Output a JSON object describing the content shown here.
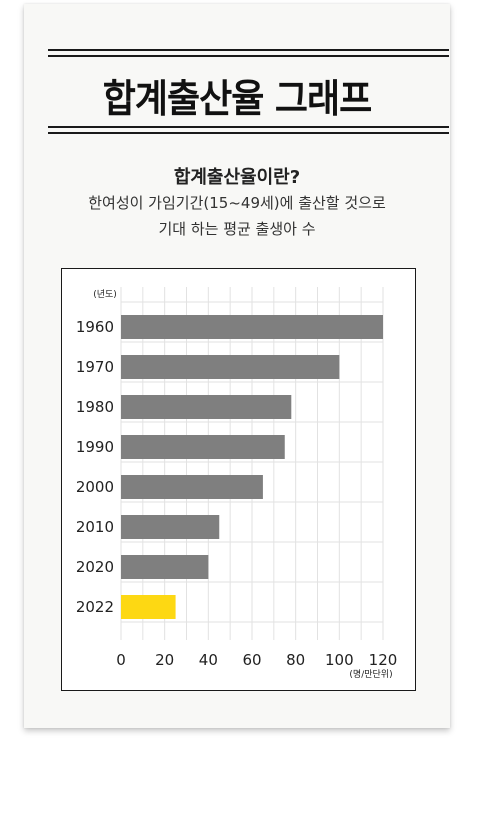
{
  "header": {
    "title": "합계출산율 그래프",
    "subtitle": "합계출산율이란?",
    "description_line1": "한여성이 가임기간(15~49세)에 출산할 것으로",
    "description_line2": "기대 하는 평균 출생아 수"
  },
  "chart_data": {
    "type": "bar",
    "orientation": "horizontal",
    "categories": [
      "1960",
      "1970",
      "1980",
      "1990",
      "2000",
      "2010",
      "2020",
      "2022"
    ],
    "values": [
      120,
      100,
      78,
      75,
      65,
      45,
      40,
      25
    ],
    "xlim": [
      0,
      120
    ],
    "xticks": [
      "0",
      "20",
      "40",
      "60",
      "80",
      "100",
      "120"
    ],
    "y_unit_label": "(년도)",
    "x_unit_label": "(명/만단위)",
    "grid": true,
    "colors": {
      "default": "#7f7f7f",
      "highlight": "#fdd813",
      "grid": "#e2e2e2"
    },
    "highlight_category": "2022"
  }
}
